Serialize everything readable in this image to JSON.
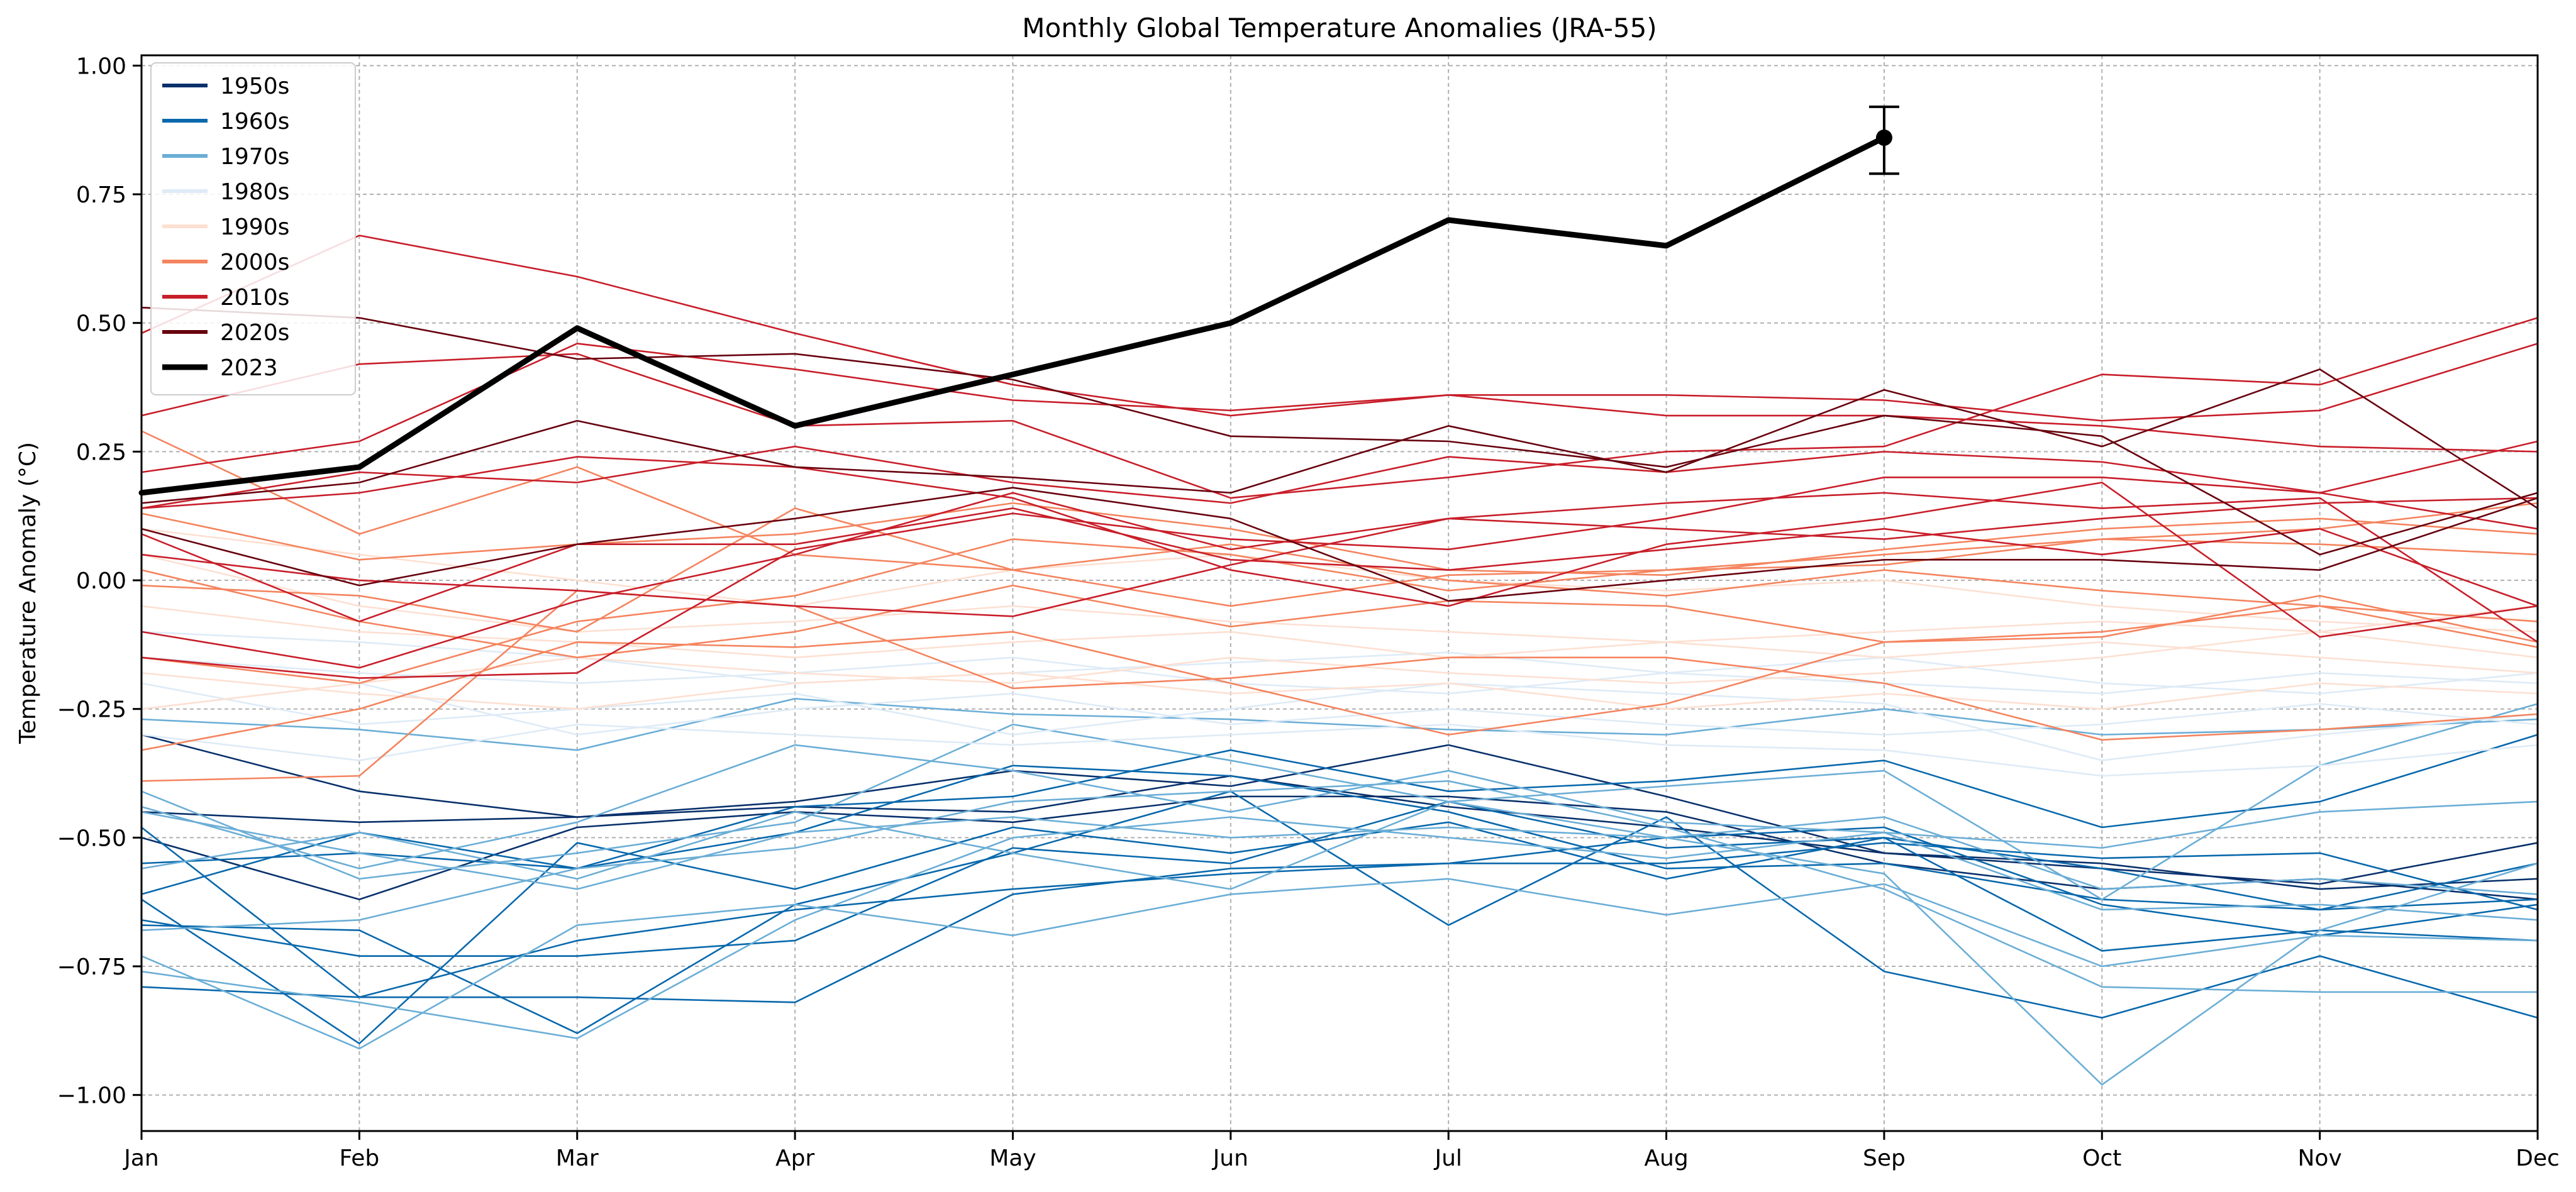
{
  "chart_data": {
    "type": "line",
    "title": "Monthly Global Temperature Anomalies (JRA-55)",
    "xlabel": "",
    "ylabel": "Temperature Anomaly (°C)",
    "categories": [
      "Jan",
      "Feb",
      "Mar",
      "Apr",
      "May",
      "Jun",
      "Jul",
      "Aug",
      "Sep",
      "Oct",
      "Nov",
      "Dec"
    ],
    "ylim": [
      -1.07,
      1.02
    ],
    "yticks": [
      -1.0,
      -0.75,
      -0.5,
      -0.25,
      0.0,
      0.25,
      0.5,
      0.75,
      1.0
    ],
    "ytick_labels": [
      "−1.00",
      "−0.75",
      "−0.50",
      "−0.25",
      "0.00",
      "0.25",
      "0.50",
      "0.75",
      "1.00"
    ],
    "grid": true,
    "legend_position": "top-left",
    "legend": [
      {
        "label": "1950s",
        "color": "#08306b"
      },
      {
        "label": "1960s",
        "color": "#0868ac"
      },
      {
        "label": "1970s",
        "color": "#6baed6"
      },
      {
        "label": "1980s",
        "color": "#deebf7"
      },
      {
        "label": "1990s",
        "color": "#fde0d2"
      },
      {
        "label": "2000s",
        "color": "#f4845f"
      },
      {
        "label": "2010s",
        "color": "#c81e2a"
      },
      {
        "label": "2020s",
        "color": "#67000d"
      },
      {
        "label": "2023",
        "color": "#000000"
      }
    ],
    "highlight": {
      "name": "2023",
      "color": "#000000",
      "values": [
        0.17,
        0.22,
        0.49,
        0.3,
        0.4,
        0.5,
        0.7,
        0.65,
        0.86,
        null,
        null,
        null
      ],
      "error_bar": {
        "month": "Sep",
        "value": 0.86,
        "low": 0.79,
        "high": 0.92
      }
    },
    "series": [
      {
        "decade": "1950s",
        "color": "#08306b",
        "values": [
          -0.3,
          -0.41,
          -0.46,
          -0.43,
          -0.37,
          -0.4,
          -0.32,
          -0.42,
          -0.53,
          -0.56,
          -0.59,
          -0.51
        ]
      },
      {
        "decade": "1950s",
        "color": "#08306b",
        "values": [
          -0.5,
          -0.62,
          -0.48,
          -0.45,
          -0.47,
          -0.42,
          -0.42,
          -0.45,
          -0.55,
          -0.6,
          -0.58,
          -0.62
        ]
      },
      {
        "decade": "1950s",
        "color": "#08306b",
        "values": [
          -0.45,
          -0.47,
          -0.46,
          -0.44,
          -0.45,
          -0.38,
          -0.44,
          -0.48,
          -0.53,
          -0.55,
          -0.6,
          -0.58
        ]
      },
      {
        "decade": "1960s",
        "color": "#0868ac",
        "values": [
          -0.61,
          -0.49,
          -0.56,
          -0.44,
          -0.42,
          -0.33,
          -0.41,
          -0.39,
          -0.35,
          -0.48,
          -0.43,
          -0.3
        ]
      },
      {
        "decade": "1960s",
        "color": "#0868ac",
        "values": [
          -0.66,
          -0.73,
          -0.73,
          -0.7,
          -0.52,
          -0.55,
          -0.43,
          -0.52,
          -0.5,
          -0.56,
          -0.64,
          -0.62
        ]
      },
      {
        "decade": "1960s",
        "color": "#0868ac",
        "values": [
          -0.79,
          -0.81,
          -0.81,
          -0.82,
          -0.61,
          -0.56,
          -0.55,
          -0.5,
          -0.48,
          -0.63,
          -0.69,
          -0.63
        ]
      },
      {
        "decade": "1960s",
        "color": "#0868ac",
        "values": [
          -0.67,
          -0.68,
          -0.88,
          -0.63,
          -0.53,
          -0.41,
          -0.67,
          -0.46,
          -0.76,
          -0.85,
          -0.73,
          -0.85
        ]
      },
      {
        "decade": "1960s",
        "color": "#0868ac",
        "values": [
          -0.55,
          -0.53,
          -0.56,
          -0.49,
          -0.36,
          -0.38,
          -0.45,
          -0.56,
          -0.55,
          -0.62,
          -0.64,
          -0.55
        ]
      },
      {
        "decade": "1960s",
        "color": "#0868ac",
        "values": [
          -0.62,
          -0.9,
          -0.51,
          -0.6,
          -0.48,
          -0.53,
          -0.47,
          -0.58,
          -0.5,
          -0.72,
          -0.68,
          -0.7
        ]
      },
      {
        "decade": "1960s",
        "color": "#0868ac",
        "values": [
          -0.48,
          -0.81,
          -0.7,
          -0.64,
          -0.6,
          -0.57,
          -0.55,
          -0.55,
          -0.51,
          -0.54,
          -0.53,
          -0.64
        ]
      },
      {
        "decade": "1970s",
        "color": "#6baed6",
        "values": [
          -0.27,
          -0.29,
          -0.33,
          -0.23,
          -0.26,
          -0.27,
          -0.29,
          -0.3,
          -0.25,
          -0.3,
          -0.29,
          -0.27
        ]
      },
      {
        "decade": "1970s",
        "color": "#6baed6",
        "values": [
          -0.44,
          -0.56,
          -0.47,
          -0.32,
          -0.37,
          -0.45,
          -0.37,
          -0.47,
          -0.49,
          -0.52,
          -0.45,
          -0.43
        ]
      },
      {
        "decade": "1970s",
        "color": "#6baed6",
        "values": [
          -0.56,
          -0.49,
          -0.58,
          -0.45,
          -0.53,
          -0.6,
          -0.43,
          -0.5,
          -0.57,
          -0.98,
          -0.68,
          -0.55
        ]
      },
      {
        "decade": "1970s",
        "color": "#6baed6",
        "values": [
          -0.73,
          -0.91,
          -0.67,
          -0.63,
          -0.69,
          -0.61,
          -0.58,
          -0.65,
          -0.59,
          -0.75,
          -0.69,
          -0.7
        ]
      },
      {
        "decade": "1970s",
        "color": "#6baed6",
        "values": [
          -0.45,
          -0.53,
          -0.6,
          -0.49,
          -0.46,
          -0.5,
          -0.48,
          -0.5,
          -0.46,
          -0.6,
          -0.58,
          -0.61
        ]
      },
      {
        "decade": "1970s",
        "color": "#6baed6",
        "values": [
          -0.76,
          -0.82,
          -0.89,
          -0.66,
          -0.5,
          -0.46,
          -0.5,
          -0.54,
          -0.49,
          -0.64,
          -0.63,
          -0.66
        ]
      },
      {
        "decade": "1970s",
        "color": "#6baed6",
        "values": [
          -0.68,
          -0.66,
          -0.56,
          -0.52,
          -0.43,
          -0.41,
          -0.39,
          -0.48,
          -0.6,
          -0.79,
          -0.8,
          -0.8
        ]
      },
      {
        "decade": "1970s",
        "color": "#6baed6",
        "values": [
          -0.41,
          -0.58,
          -0.53,
          -0.47,
          -0.28,
          -0.35,
          -0.43,
          -0.4,
          -0.37,
          -0.62,
          -0.36,
          -0.24
        ]
      },
      {
        "decade": "1980s",
        "color": "#deebf7",
        "values": [
          -0.1,
          -0.12,
          -0.15,
          -0.2,
          -0.18,
          -0.16,
          -0.14,
          -0.18,
          -0.2,
          -0.22,
          -0.18,
          -0.2
        ]
      },
      {
        "decade": "1980s",
        "color": "#deebf7",
        "values": [
          -0.2,
          -0.28,
          -0.25,
          -0.22,
          -0.3,
          -0.25,
          -0.2,
          -0.22,
          -0.24,
          -0.35,
          -0.3,
          -0.26
        ]
      },
      {
        "decade": "1980s",
        "color": "#deebf7",
        "values": [
          -0.25,
          -0.2,
          -0.3,
          -0.25,
          -0.22,
          -0.28,
          -0.25,
          -0.28,
          -0.3,
          -0.28,
          -0.24,
          -0.28
        ]
      },
      {
        "decade": "1980s",
        "color": "#deebf7",
        "values": [
          -0.3,
          -0.35,
          -0.28,
          -0.3,
          -0.32,
          -0.3,
          -0.28,
          -0.32,
          -0.33,
          -0.38,
          -0.36,
          -0.32
        ]
      },
      {
        "decade": "1980s",
        "color": "#deebf7",
        "values": [
          -0.15,
          -0.18,
          -0.2,
          -0.18,
          -0.15,
          -0.2,
          -0.22,
          -0.18,
          -0.15,
          -0.2,
          -0.22,
          -0.18
        ]
      },
      {
        "decade": "1990s",
        "color": "#fde0d2",
        "values": [
          0.05,
          -0.05,
          -0.1,
          -0.08,
          -0.05,
          -0.08,
          -0.1,
          -0.12,
          -0.1,
          -0.08,
          -0.1,
          -0.05
        ]
      },
      {
        "decade": "1990s",
        "color": "#fde0d2",
        "values": [
          -0.18,
          -0.22,
          -0.25,
          -0.2,
          -0.18,
          -0.22,
          -0.2,
          -0.25,
          -0.22,
          -0.25,
          -0.2,
          -0.22
        ]
      },
      {
        "decade": "1990s",
        "color": "#fde0d2",
        "values": [
          0.1,
          0.05,
          0.0,
          -0.05,
          0.02,
          0.05,
          0.0,
          -0.02,
          0.0,
          -0.05,
          -0.08,
          -0.1
        ]
      },
      {
        "decade": "1990s",
        "color": "#fde0d2",
        "values": [
          -0.05,
          -0.1,
          -0.12,
          -0.15,
          -0.12,
          -0.1,
          -0.15,
          -0.12,
          -0.15,
          -0.12,
          -0.15,
          -0.18
        ]
      },
      {
        "decade": "1990s",
        "color": "#fde0d2",
        "values": [
          -0.25,
          -0.2,
          -0.15,
          -0.18,
          -0.2,
          -0.15,
          -0.18,
          -0.2,
          -0.18,
          -0.15,
          -0.1,
          -0.15
        ]
      },
      {
        "decade": "2000s",
        "color": "#f4845f",
        "values": [
          -0.39,
          -0.38,
          -0.02,
          -0.05,
          -0.21,
          -0.19,
          -0.15,
          -0.15,
          -0.2,
          -0.31,
          -0.29,
          -0.26
        ]
      },
      {
        "decade": "2000s",
        "color": "#f4845f",
        "values": [
          -0.33,
          -0.25,
          -0.12,
          -0.13,
          -0.1,
          -0.2,
          -0.3,
          -0.24,
          -0.12,
          -0.1,
          -0.05,
          -0.13
        ]
      },
      {
        "decade": "2000s",
        "color": "#f4845f",
        "values": [
          0.29,
          0.09,
          0.22,
          0.05,
          0.02,
          -0.05,
          0.01,
          0.02,
          0.05,
          0.08,
          0.1,
          0.15
        ]
      },
      {
        "decade": "2000s",
        "color": "#f4845f",
        "values": [
          -0.01,
          -0.03,
          -0.1,
          0.14,
          0.02,
          0.07,
          0.0,
          -0.03,
          0.02,
          -0.02,
          -0.05,
          -0.08
        ]
      },
      {
        "decade": "2000s",
        "color": "#f4845f",
        "values": [
          0.02,
          -0.08,
          -0.15,
          -0.1,
          -0.01,
          -0.09,
          -0.04,
          -0.05,
          -0.12,
          -0.11,
          -0.03,
          -0.12
        ]
      },
      {
        "decade": "2000s",
        "color": "#f4845f",
        "values": [
          0.13,
          0.04,
          0.07,
          0.09,
          0.15,
          0.1,
          0.02,
          0.01,
          0.06,
          0.1,
          0.12,
          0.09
        ]
      },
      {
        "decade": "2000s",
        "color": "#f4845f",
        "values": [
          -0.15,
          -0.2,
          -0.08,
          -0.03,
          0.08,
          0.05,
          -0.02,
          0.02,
          0.03,
          0.08,
          0.07,
          0.05
        ]
      },
      {
        "decade": "2010s",
        "color": "#c81e2a",
        "values": [
          0.32,
          0.42,
          0.44,
          0.3,
          0.31,
          0.16,
          0.2,
          0.25,
          0.26,
          0.4,
          0.38,
          0.51
        ]
      },
      {
        "decade": "2010s",
        "color": "#c81e2a",
        "values": [
          0.48,
          0.67,
          0.59,
          0.48,
          0.38,
          0.32,
          0.36,
          0.36,
          0.35,
          0.31,
          0.33,
          0.46
        ]
      },
      {
        "decade": "2010s",
        "color": "#c81e2a",
        "values": [
          0.21,
          0.27,
          0.46,
          0.41,
          0.35,
          0.33,
          0.36,
          0.32,
          0.32,
          0.3,
          0.26,
          0.25
        ]
      },
      {
        "decade": "2010s",
        "color": "#c81e2a",
        "values": [
          0.14,
          0.21,
          0.19,
          0.26,
          0.19,
          0.15,
          0.24,
          0.21,
          0.25,
          0.23,
          0.17,
          0.27
        ]
      },
      {
        "decade": "2010s",
        "color": "#c81e2a",
        "values": [
          -0.1,
          -0.17,
          -0.04,
          0.05,
          0.17,
          0.06,
          0.12,
          0.15,
          0.17,
          0.14,
          0.16,
          -0.12
        ]
      },
      {
        "decade": "2010s",
        "color": "#c81e2a",
        "values": [
          -0.15,
          -0.19,
          -0.18,
          0.06,
          0.13,
          0.08,
          0.06,
          0.12,
          0.2,
          0.2,
          0.17,
          0.1
        ]
      },
      {
        "decade": "2010s",
        "color": "#c81e2a",
        "values": [
          0.09,
          -0.08,
          0.07,
          0.07,
          0.14,
          0.04,
          0.02,
          0.06,
          0.1,
          0.05,
          0.1,
          -0.05
        ]
      },
      {
        "decade": "2010s",
        "color": "#c81e2a",
        "values": [
          0.14,
          0.17,
          0.24,
          0.22,
          0.16,
          0.02,
          -0.05,
          0.07,
          0.12,
          0.19,
          -0.11,
          -0.05
        ]
      },
      {
        "decade": "2010s",
        "color": "#c81e2a",
        "values": [
          0.05,
          0.0,
          -0.02,
          -0.05,
          -0.07,
          0.03,
          0.12,
          0.1,
          0.08,
          0.12,
          0.15,
          0.16
        ]
      },
      {
        "decade": "2020s",
        "color": "#67000d",
        "values": [
          0.53,
          0.51,
          0.43,
          0.44,
          0.39,
          0.28,
          0.27,
          0.22,
          0.32,
          0.28,
          0.05,
          0.17
        ]
      },
      {
        "decade": "2020s",
        "color": "#67000d",
        "values": [
          0.15,
          0.19,
          0.31,
          0.22,
          0.2,
          0.17,
          0.3,
          0.21,
          0.37,
          0.26,
          0.41,
          0.14
        ]
      },
      {
        "decade": "2020s",
        "color": "#67000d",
        "values": [
          0.1,
          -0.01,
          0.07,
          0.12,
          0.18,
          0.12,
          -0.04,
          0.0,
          0.04,
          0.04,
          0.02,
          0.16
        ]
      }
    ]
  }
}
